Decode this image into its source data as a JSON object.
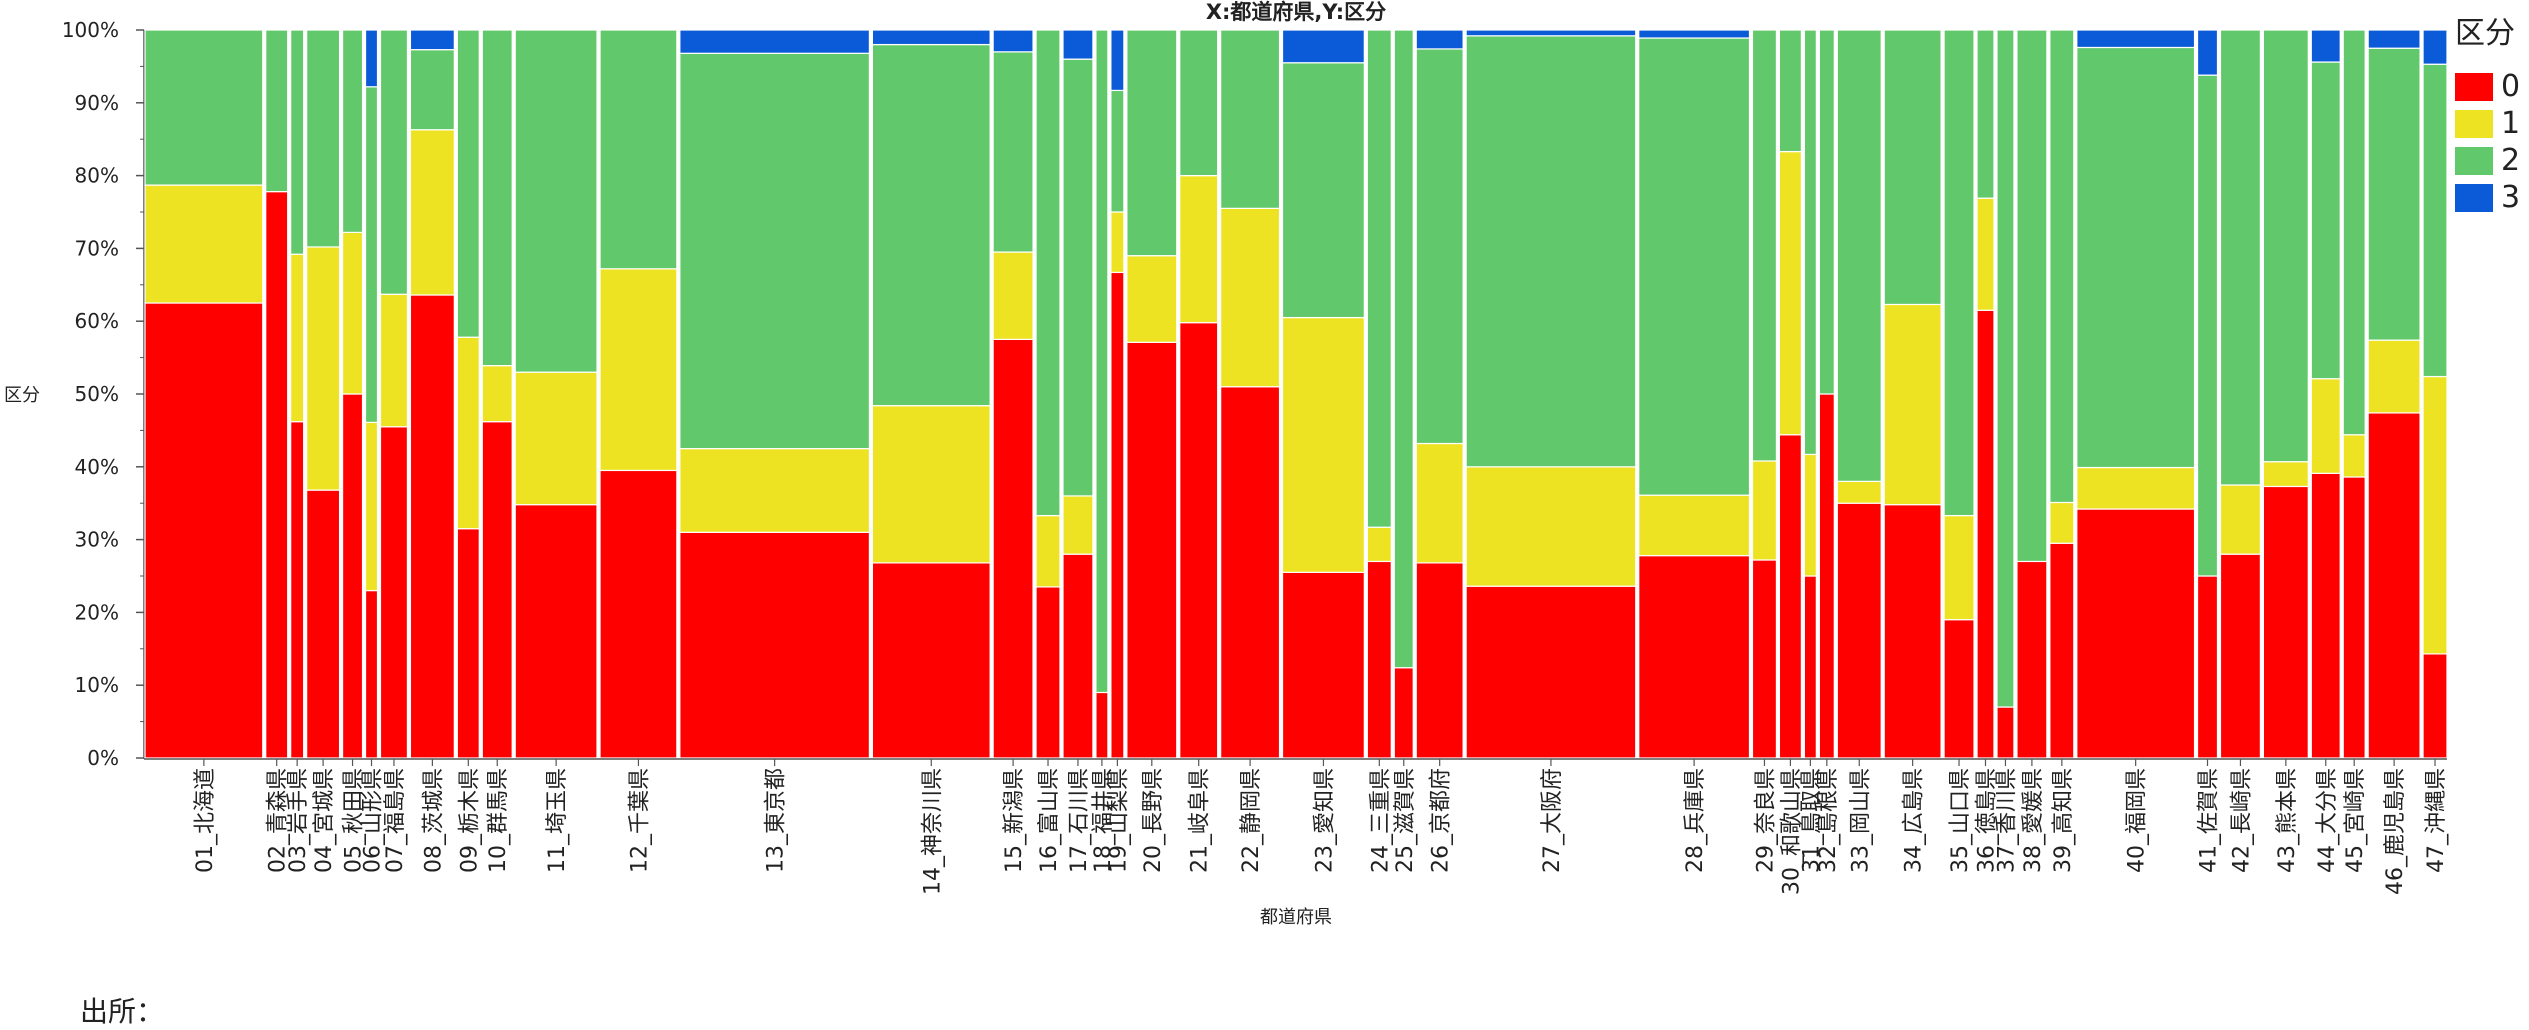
{
  "chart_data": {
    "type": "mosaic",
    "title": "X:都道府県,Y:区分",
    "xlabel": "都道府県",
    "ylabel": "区分",
    "legend_title": "区分",
    "legend_position": "right",
    "stack_order": [
      "0",
      "1",
      "2",
      "3"
    ],
    "colors": {
      "0": "#ff0000",
      "1": "#eee322",
      "2": "#61c86b",
      "3": "#0b5bd8"
    },
    "ylim": [
      0,
      100
    ],
    "y_ticks": [
      "0%",
      "10%",
      "20%",
      "30%",
      "40%",
      "50%",
      "60%",
      "70%",
      "80%",
      "90%",
      "100%"
    ],
    "categories": [
      {
        "label": "01_北海道",
        "weight": 118,
        "values": [
          62.5,
          16.2,
          21.3,
          0
        ]
      },
      {
        "label": "02_青森県",
        "weight": 22,
        "values": [
          77.8,
          0,
          22.2,
          0
        ]
      },
      {
        "label": "03_岩手県",
        "weight": 13,
        "values": [
          46.2,
          23.0,
          30.8,
          0
        ]
      },
      {
        "label": "04_宮城県",
        "weight": 33,
        "values": [
          36.8,
          33.4,
          29.8,
          0
        ]
      },
      {
        "label": "05_秋田県",
        "weight": 20,
        "values": [
          50.0,
          22.2,
          27.8,
          0
        ]
      },
      {
        "label": "06_山形県",
        "weight": 12,
        "values": [
          23.0,
          23.1,
          46.1,
          7.8
        ]
      },
      {
        "label": "07_福島県",
        "weight": 27,
        "values": [
          45.5,
          18.2,
          36.3,
          0
        ]
      },
      {
        "label": "08_茨城県",
        "weight": 44,
        "values": [
          63.6,
          22.7,
          11.0,
          2.7
        ]
      },
      {
        "label": "09_栃木県",
        "weight": 22,
        "values": [
          31.5,
          26.3,
          42.2,
          0
        ]
      },
      {
        "label": "10_群馬県",
        "weight": 30,
        "values": [
          46.2,
          7.7,
          46.1,
          0
        ]
      },
      {
        "label": "11_埼玉県",
        "weight": 82,
        "values": [
          34.8,
          18.2,
          47.0,
          0
        ]
      },
      {
        "label": "12_千葉県",
        "weight": 77,
        "values": [
          39.5,
          27.7,
          32.8,
          0
        ]
      },
      {
        "label": "13_東京都",
        "weight": 190,
        "values": [
          31.0,
          11.5,
          54.3,
          3.2
        ]
      },
      {
        "label": "14_神奈川県",
        "weight": 118,
        "values": [
          26.8,
          21.6,
          49.6,
          2.0
        ]
      },
      {
        "label": "15_新潟県",
        "weight": 40,
        "values": [
          57.5,
          12.0,
          27.5,
          3.0
        ]
      },
      {
        "label": "16_富山県",
        "weight": 24,
        "values": [
          23.5,
          9.8,
          66.7,
          0
        ]
      },
      {
        "label": "17_石川県",
        "weight": 30,
        "values": [
          28.0,
          8.0,
          60.0,
          4.0
        ]
      },
      {
        "label": "18_福井県",
        "weight": 12,
        "values": [
          9.0,
          0,
          91.0,
          0
        ]
      },
      {
        "label": "19_山梨県",
        "weight": 13,
        "values": [
          66.7,
          8.3,
          16.7,
          8.3
        ]
      },
      {
        "label": "20_長野県",
        "weight": 50,
        "values": [
          57.1,
          11.9,
          31.0,
          0
        ]
      },
      {
        "label": "21_岐阜県",
        "weight": 38,
        "values": [
          59.8,
          20.2,
          20.0,
          0
        ]
      },
      {
        "label": "22_静岡県",
        "weight": 59,
        "values": [
          51.0,
          24.5,
          24.5,
          0
        ]
      },
      {
        "label": "23_愛知県",
        "weight": 82,
        "values": [
          25.5,
          35.0,
          35.0,
          4.5
        ]
      },
      {
        "label": "24_三重県",
        "weight": 24,
        "values": [
          27.0,
          4.7,
          68.3,
          0
        ]
      },
      {
        "label": "25_滋賀県",
        "weight": 19,
        "values": [
          12.4,
          0,
          87.6,
          0
        ]
      },
      {
        "label": "26_京都府",
        "weight": 47,
        "values": [
          26.8,
          16.4,
          54.2,
          2.6
        ]
      },
      {
        "label": "27_大阪府",
        "weight": 170,
        "values": [
          23.6,
          16.4,
          59.2,
          0.8
        ]
      },
      {
        "label": "28_兵庫県",
        "weight": 111,
        "values": [
          27.8,
          8.3,
          62.8,
          1.1
        ]
      },
      {
        "label": "29_奈良県",
        "weight": 24,
        "values": [
          27.2,
          13.6,
          59.2,
          0
        ]
      },
      {
        "label": "30_和歌山県",
        "weight": 22,
        "values": [
          44.4,
          38.9,
          16.7,
          0
        ]
      },
      {
        "label": "31_鳥取県",
        "weight": 12,
        "values": [
          25.0,
          16.7,
          58.3,
          0
        ]
      },
      {
        "label": "32_島根県",
        "weight": 15,
        "values": [
          50.0,
          0,
          50.0,
          0
        ]
      },
      {
        "label": "33_岡山県",
        "weight": 44,
        "values": [
          35.0,
          3.0,
          62.0,
          0
        ]
      },
      {
        "label": "34_広島県",
        "weight": 57,
        "values": [
          34.8,
          27.5,
          37.7,
          0
        ]
      },
      {
        "label": "35_山口県",
        "weight": 30,
        "values": [
          19.0,
          14.3,
          66.7,
          0
        ]
      },
      {
        "label": "36_徳島県",
        "weight": 17,
        "values": [
          61.5,
          15.4,
          23.1,
          0
        ]
      },
      {
        "label": "37_香川県",
        "weight": 17,
        "values": [
          7.0,
          0,
          93.0,
          0
        ]
      },
      {
        "label": "38_愛媛県",
        "weight": 30,
        "values": [
          27.0,
          0,
          73.0,
          0
        ]
      },
      {
        "label": "39_高知県",
        "weight": 24,
        "values": [
          29.5,
          5.6,
          64.9,
          0
        ]
      },
      {
        "label": "40_福岡県",
        "weight": 118,
        "values": [
          34.2,
          5.7,
          57.7,
          2.4
        ]
      },
      {
        "label": "41_佐賀県",
        "weight": 20,
        "values": [
          25.0,
          0,
          68.8,
          6.2
        ]
      },
      {
        "label": "42_長崎県",
        "weight": 40,
        "values": [
          28.0,
          9.5,
          62.5,
          0
        ]
      },
      {
        "label": "43_熊本県",
        "weight": 45,
        "values": [
          37.3,
          3.4,
          59.3,
          0
        ]
      },
      {
        "label": "44_大分県",
        "weight": 29,
        "values": [
          39.1,
          13.0,
          43.5,
          4.4
        ]
      },
      {
        "label": "45_宮崎県",
        "weight": 22,
        "values": [
          38.6,
          5.8,
          55.6,
          0
        ]
      },
      {
        "label": "46_鹿児島県",
        "weight": 52,
        "values": [
          47.4,
          10.0,
          40.1,
          2.5
        ]
      },
      {
        "label": "47_沖縄県",
        "weight": 24,
        "values": [
          14.3,
          38.1,
          42.9,
          4.7
        ]
      }
    ]
  },
  "source_note": "出所："
}
